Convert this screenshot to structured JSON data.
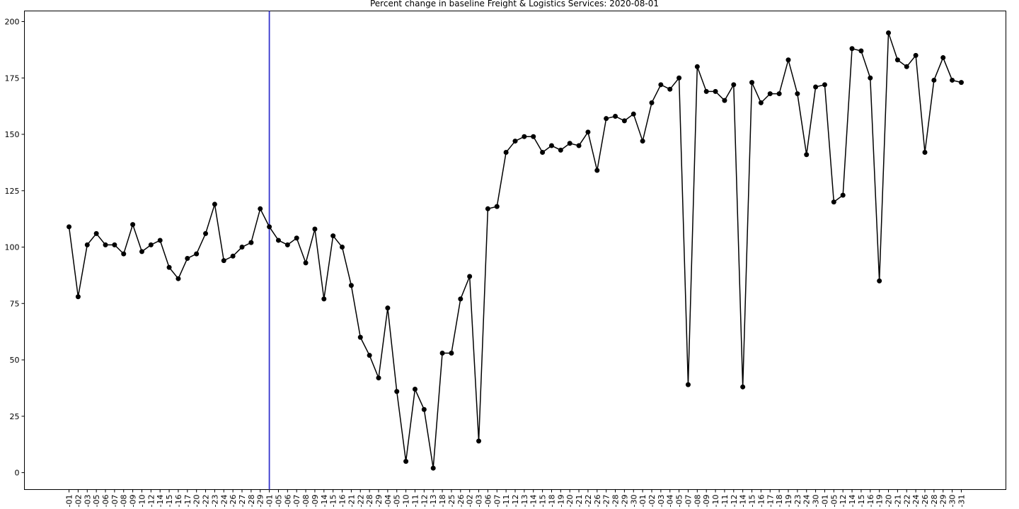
{
  "chart_data": {
    "type": "line",
    "title": "Percent change in baseline Freight & Logistics Services: 2020-08-01",
    "categories": [
      "-01",
      "-02",
      "-03",
      "-05",
      "-06",
      "-07",
      "-08",
      "-09",
      "-10",
      "-12",
      "-14",
      "-15",
      "-16",
      "-17",
      "-20",
      "-22",
      "-23",
      "-24",
      "-26",
      "-27",
      "-28",
      "-29",
      "-01",
      "-05",
      "-06",
      "-07",
      "-08",
      "-09",
      "-14",
      "-15",
      "-16",
      "-21",
      "-22",
      "-28",
      "-29",
      "-04",
      "-05",
      "-10",
      "-11",
      "-12",
      "-13",
      "-18",
      "-25",
      "-26",
      "-02",
      "-03",
      "-06",
      "-07",
      "-11",
      "-12",
      "-13",
      "-14",
      "-15",
      "-18",
      "-19",
      "-20",
      "-21",
      "-22",
      "-26",
      "-27",
      "-28",
      "-29",
      "-30",
      "-01",
      "-02",
      "-03",
      "-04",
      "-05",
      "-07",
      "-08",
      "-09",
      "-10",
      "-11",
      "-12",
      "-14",
      "-15",
      "-16",
      "-17",
      "-18",
      "-19",
      "-23",
      "-24",
      "-30",
      "-01",
      "-05",
      "-12",
      "-14",
      "-15",
      "-16",
      "-19",
      "-20",
      "-21",
      "-22",
      "-24",
      "-26",
      "-28",
      "-29",
      "-30",
      "-31"
    ],
    "series": [
      {
        "name": "Percent change",
        "color": "#000000",
        "values": [
          109,
          78,
          101,
          106,
          101,
          101,
          97,
          110,
          98,
          101,
          103,
          91,
          86,
          95,
          97,
          106,
          119,
          94,
          96,
          100,
          102,
          117,
          109,
          103,
          101,
          104,
          93,
          108,
          77,
          105,
          100,
          83,
          60,
          52,
          42,
          73,
          36,
          5,
          37,
          28,
          2,
          53,
          53,
          77,
          87,
          14,
          117,
          118,
          142,
          147,
          149,
          149,
          142,
          145,
          143,
          146,
          145,
          151,
          134,
          157,
          158,
          156,
          159,
          147,
          164,
          172,
          170,
          175,
          39,
          180,
          169,
          169,
          165,
          172,
          38,
          173,
          164,
          168,
          168,
          183,
          168,
          141,
          171,
          172,
          120,
          123,
          188,
          187,
          175,
          85,
          195,
          183,
          180,
          185,
          142,
          174,
          184,
          174,
          173
        ]
      }
    ],
    "vline": {
      "at": 22,
      "color": "#3333cc"
    },
    "ylim": [
      -7.5,
      204.7
    ],
    "yticks": [
      0,
      25,
      50,
      75,
      100,
      125,
      150,
      175,
      200
    ]
  }
}
